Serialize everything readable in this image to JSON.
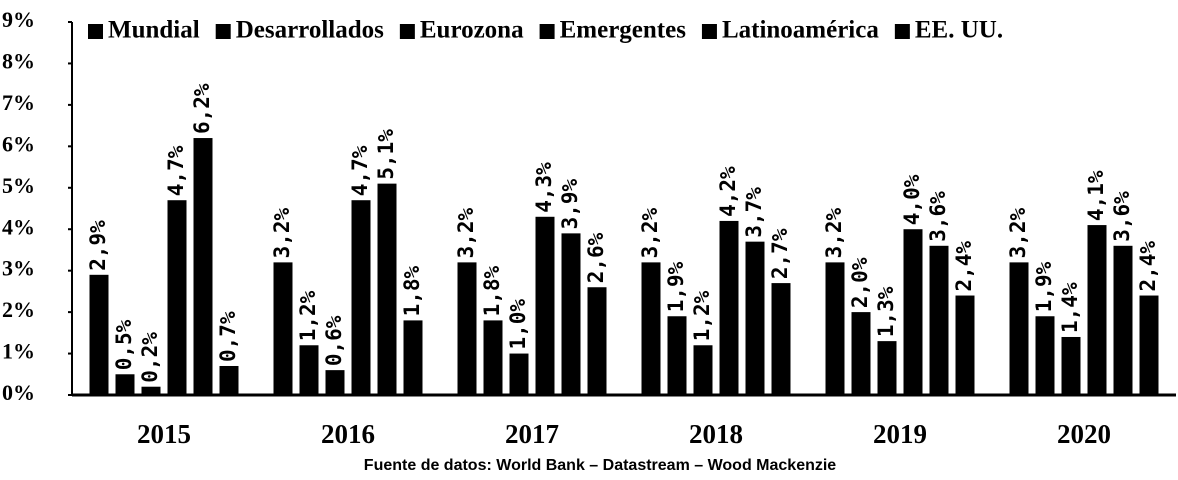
{
  "chart_data": {
    "type": "bar",
    "categories": [
      "2015",
      "2016",
      "2017",
      "2018",
      "2019",
      "2020"
    ],
    "series": [
      {
        "name": "Mundial",
        "color": "#000000",
        "values": [
          2.9,
          3.2,
          3.2,
          3.2,
          3.2,
          3.2
        ],
        "value_labels": [
          "2,9%",
          "3,2%",
          "3,2%",
          "3,2%",
          "3,2%",
          "3,2%"
        ]
      },
      {
        "name": "Desarrollados",
        "color": "#000000",
        "values": [
          0.5,
          1.2,
          1.8,
          1.9,
          2.0,
          1.9
        ],
        "value_labels": [
          "0,5%",
          "1,2%",
          "1,8%",
          "1,9%",
          "2,0%",
          "1,9%"
        ]
      },
      {
        "name": "Eurozona",
        "color": "#000000",
        "values": [
          0.2,
          0.6,
          1.0,
          1.2,
          1.3,
          1.4
        ],
        "value_labels": [
          "0,2%",
          "0,6%",
          "1,0%",
          "1,2%",
          "1,3%",
          "1,4%"
        ]
      },
      {
        "name": "Emergentes",
        "color": "#000000",
        "values": [
          4.7,
          4.7,
          4.3,
          4.2,
          4.0,
          4.1
        ],
        "value_labels": [
          "4,7%",
          "4,7%",
          "4,3%",
          "4,2%",
          "4,0%",
          "4,1%"
        ]
      },
      {
        "name": "Latinoamérica",
        "color": "#000000",
        "values": [
          6.2,
          5.1,
          3.9,
          3.7,
          3.6,
          3.6
        ],
        "value_labels": [
          "6,2%",
          "5,1%",
          "3,9%",
          "3,7%",
          "3,6%",
          "3,6%"
        ]
      },
      {
        "name": "EE. UU.",
        "color": "#000000",
        "values": [
          0.7,
          1.8,
          2.6,
          2.7,
          2.4,
          2.4
        ],
        "value_labels": [
          "0,7%",
          "1,8%",
          "2,6%",
          "2,7%",
          "2,4%",
          "2,4%"
        ]
      }
    ],
    "ylim": [
      0,
      9
    ],
    "yticks": [
      {
        "value": 0,
        "label": "0%"
      },
      {
        "value": 1,
        "label": "1%"
      },
      {
        "value": 2,
        "label": "2%"
      },
      {
        "value": 3,
        "label": "3%"
      },
      {
        "value": 4,
        "label": "4%"
      },
      {
        "value": 5,
        "label": "5%"
      },
      {
        "value": 6,
        "label": "6%"
      },
      {
        "value": 7,
        "label": "7%"
      },
      {
        "value": 8,
        "label": "8%"
      },
      {
        "value": 9,
        "label": "9%"
      }
    ],
    "legend": "top",
    "source": "Fuente de datos: World Bank – Datastream – Wood Mackenzie"
  }
}
